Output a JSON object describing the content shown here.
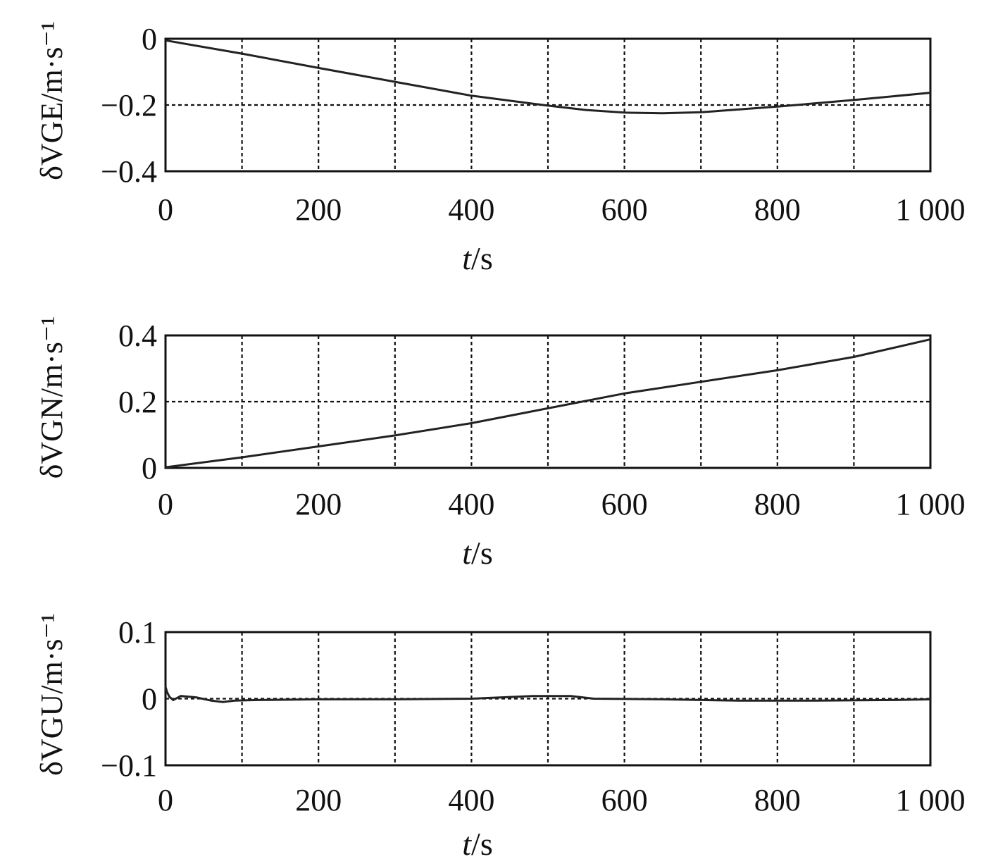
{
  "chart_data": [
    {
      "type": "line",
      "ylabel": "δVGE/m·s⁻¹",
      "xlabel": "t/s",
      "xlim": [
        0,
        1000
      ],
      "ylim": [
        -0.4,
        0
      ],
      "x_ticks": [
        "0",
        "200",
        "400",
        "600",
        "800",
        "1 000"
      ],
      "y_ticks": [
        {
          "value": 0,
          "label": "0"
        },
        {
          "value": -0.2,
          "label": "−0.2"
        },
        {
          "value": -0.4,
          "label": "−0.4"
        }
      ],
      "grid": true,
      "series": [
        {
          "x": [
            0,
            100,
            200,
            300,
            400,
            500,
            550,
            600,
            650,
            700,
            800,
            900,
            1000
          ],
          "values": [
            -0.005,
            -0.045,
            -0.088,
            -0.13,
            -0.172,
            -0.202,
            -0.215,
            -0.223,
            -0.225,
            -0.222,
            -0.205,
            -0.185,
            -0.163
          ]
        }
      ]
    },
    {
      "type": "line",
      "ylabel": "δVGN/m·s⁻¹",
      "xlabel": "t/s",
      "xlim": [
        0,
        1000
      ],
      "ylim": [
        0,
        0.4
      ],
      "x_ticks": [
        "0",
        "200",
        "400",
        "600",
        "800",
        "1 000"
      ],
      "y_ticks": [
        {
          "value": 0.4,
          "label": "0.4"
        },
        {
          "value": 0.2,
          "label": "0.2"
        },
        {
          "value": 0,
          "label": "0"
        }
      ],
      "grid": true,
      "series": [
        {
          "x": [
            0,
            100,
            200,
            300,
            400,
            500,
            600,
            700,
            800,
            900,
            1000
          ],
          "values": [
            0.002,
            0.032,
            0.065,
            0.098,
            0.135,
            0.18,
            0.225,
            0.26,
            0.295,
            0.335,
            0.388
          ]
        }
      ]
    },
    {
      "type": "line",
      "ylabel": "δVGU/m·s⁻¹",
      "xlabel": "t/s",
      "xlim": [
        0,
        1000
      ],
      "ylim": [
        -0.1,
        0.1
      ],
      "x_ticks": [
        "0",
        "200",
        "400",
        "600",
        "800",
        "1 000"
      ],
      "y_ticks": [
        {
          "value": 0.1,
          "label": "0.1"
        },
        {
          "value": 0,
          "label": "0"
        },
        {
          "value": -0.1,
          "label": "−0.1"
        }
      ],
      "grid": true,
      "series": [
        {
          "x": [
            0,
            2,
            5,
            10,
            20,
            40,
            60,
            75,
            90,
            120,
            200,
            300,
            400,
            480,
            500,
            530,
            560,
            650,
            750,
            850,
            950,
            1000
          ],
          "values": [
            0.018,
            0.01,
            0.003,
            -0.002,
            0.004,
            0.002,
            -0.003,
            -0.005,
            -0.003,
            -0.002,
            -0.001,
            -0.001,
            0.0,
            0.004,
            0.004,
            0.004,
            0.0,
            -0.001,
            -0.003,
            -0.003,
            -0.002,
            -0.001
          ]
        }
      ]
    }
  ]
}
